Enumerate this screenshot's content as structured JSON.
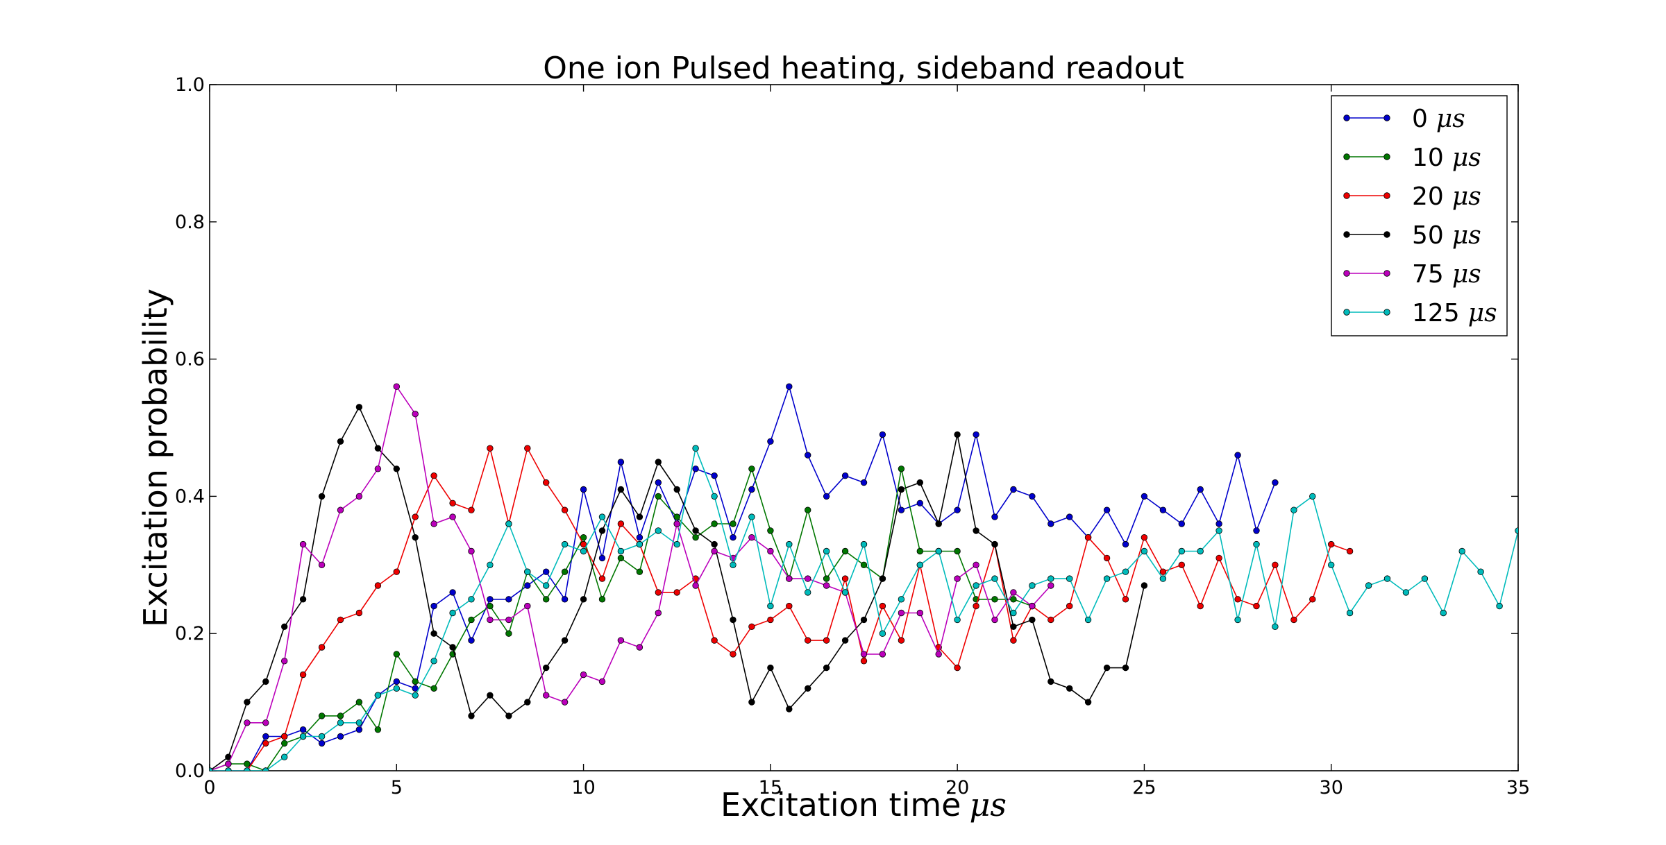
{
  "chart_data": {
    "type": "line",
    "title": "One ion Pulsed heating, sideband readout",
    "xlabel": "Excitation time",
    "xlabel_unit": "μs",
    "ylabel": "Excitation probability",
    "xlim": [
      0,
      35
    ],
    "ylim": [
      0,
      1.0
    ],
    "xticks": [
      0,
      5,
      10,
      15,
      20,
      25,
      30,
      35
    ],
    "yticks": [
      0.0,
      0.2,
      0.4,
      0.6,
      0.8,
      1.0
    ],
    "xtick_labels": [
      "0",
      "5",
      "10",
      "15",
      "20",
      "25",
      "30",
      "35"
    ],
    "ytick_labels": [
      "0.0",
      "0.2",
      "0.4",
      "0.6",
      "0.8",
      "1.0"
    ],
    "grid": false,
    "legend_position": "top-right",
    "series": [
      {
        "name": "0",
        "unit": "μs",
        "color": "#0000cc",
        "x": [
          0,
          0.5,
          1,
          1.5,
          2,
          2.5,
          3,
          3.5,
          4,
          4.5,
          5,
          5.5,
          6,
          6.5,
          7,
          7.5,
          8,
          8.5,
          9,
          9.5,
          10,
          10.5,
          11,
          11.5,
          12,
          12.5,
          13,
          13.5,
          14,
          14.5,
          15,
          15.5,
          16,
          16.5,
          17,
          17.5,
          18,
          18.5,
          19,
          19.5,
          20,
          20.5,
          21,
          21.5,
          22,
          22.5,
          23,
          23.5,
          24,
          24.5,
          25,
          25.5,
          26,
          26.5,
          27,
          27.5,
          28,
          28.5
        ],
        "y": [
          0,
          0,
          0,
          0.05,
          0.05,
          0.06,
          0.04,
          0.05,
          0.06,
          0.11,
          0.13,
          0.12,
          0.24,
          0.26,
          0.19,
          0.25,
          0.25,
          0.27,
          0.29,
          0.25,
          0.41,
          0.31,
          0.45,
          0.34,
          0.42,
          0.36,
          0.44,
          0.43,
          0.34,
          0.41,
          0.48,
          0.56,
          0.46,
          0.4,
          0.43,
          0.42,
          0.49,
          0.38,
          0.39,
          0.36,
          0.38,
          0.49,
          0.37,
          0.41,
          0.4,
          0.36,
          0.37,
          0.34,
          0.38,
          0.33,
          0.4,
          0.38,
          0.36,
          0.41,
          0.36,
          0.46,
          0.35,
          0.42
        ]
      },
      {
        "name": "10",
        "unit": "μs",
        "color": "#007700",
        "x": [
          0,
          0.5,
          1,
          1.5,
          2,
          2.5,
          3,
          3.5,
          4,
          4.5,
          5,
          5.5,
          6,
          6.5,
          7,
          7.5,
          8,
          8.5,
          9,
          9.5,
          10,
          10.5,
          11,
          11.5,
          12,
          12.5,
          13,
          13.5,
          14,
          14.5,
          15,
          15.5,
          16,
          16.5,
          17,
          17.5,
          18,
          18.5,
          19,
          19.5,
          20,
          20.5,
          21,
          21.5,
          22
        ],
        "y": [
          0,
          0.01,
          0.01,
          0,
          0.04,
          0.05,
          0.08,
          0.08,
          0.1,
          0.06,
          0.17,
          0.13,
          0.12,
          0.17,
          0.22,
          0.24,
          0.2,
          0.29,
          0.25,
          0.29,
          0.34,
          0.25,
          0.31,
          0.29,
          0.4,
          0.37,
          0.34,
          0.36,
          0.36,
          0.44,
          0.35,
          0.28,
          0.38,
          0.28,
          0.32,
          0.3,
          0.28,
          0.44,
          0.32,
          0.32,
          0.32,
          0.25,
          0.25,
          0.25,
          0.24
        ]
      },
      {
        "name": "20",
        "unit": "μs",
        "color": "#ee0000",
        "x": [
          0,
          0.5,
          1,
          1.5,
          2,
          2.5,
          3,
          3.5,
          4,
          4.5,
          5,
          5.5,
          6,
          6.5,
          7,
          7.5,
          8,
          8.5,
          9,
          9.5,
          10,
          10.5,
          11,
          11.5,
          12,
          12.5,
          13,
          13.5,
          14,
          14.5,
          15,
          15.5,
          16,
          16.5,
          17,
          17.5,
          18,
          18.5,
          19,
          19.5,
          20,
          20.5,
          21,
          21.5,
          22,
          22.5,
          23,
          23.5,
          24,
          24.5,
          25,
          25.5,
          26,
          26.5,
          27,
          27.5,
          28,
          28.5,
          29,
          29.5,
          30,
          30.5
        ],
        "y": [
          0,
          0,
          0,
          0.04,
          0.05,
          0.14,
          0.18,
          0.22,
          0.23,
          0.27,
          0.29,
          0.37,
          0.43,
          0.39,
          0.38,
          0.47,
          0.36,
          0.47,
          0.42,
          0.38,
          0.33,
          0.28,
          0.36,
          0.33,
          0.26,
          0.26,
          0.28,
          0.19,
          0.17,
          0.21,
          0.22,
          0.24,
          0.19,
          0.19,
          0.28,
          0.16,
          0.24,
          0.19,
          0.3,
          0.18,
          0.15,
          0.24,
          0.33,
          0.19,
          0.24,
          0.22,
          0.24,
          0.34,
          0.31,
          0.25,
          0.34,
          0.29,
          0.3,
          0.24,
          0.31,
          0.25,
          0.24,
          0.3,
          0.22,
          0.25,
          0.33,
          0.32
        ]
      },
      {
        "name": "50",
        "unit": "μs",
        "color": "#000000",
        "x": [
          0,
          0.5,
          1,
          1.5,
          2,
          2.5,
          3,
          3.5,
          4,
          4.5,
          5,
          5.5,
          6,
          6.5,
          7,
          7.5,
          8,
          8.5,
          9,
          9.5,
          10,
          10.5,
          11,
          11.5,
          12,
          12.5,
          13,
          13.5,
          14,
          14.5,
          15,
          15.5,
          16,
          16.5,
          17,
          17.5,
          18,
          18.5,
          19,
          19.5,
          20,
          20.5,
          21,
          21.5,
          22,
          22.5,
          23,
          23.5,
          24,
          24.5,
          25
        ],
        "y": [
          0,
          0.02,
          0.1,
          0.13,
          0.21,
          0.25,
          0.4,
          0.48,
          0.53,
          0.47,
          0.44,
          0.34,
          0.2,
          0.18,
          0.08,
          0.11,
          0.08,
          0.1,
          0.15,
          0.19,
          0.25,
          0.35,
          0.41,
          0.37,
          0.45,
          0.41,
          0.35,
          0.33,
          0.22,
          0.1,
          0.15,
          0.09,
          0.12,
          0.15,
          0.19,
          0.22,
          0.28,
          0.41,
          0.42,
          0.36,
          0.49,
          0.35,
          0.33,
          0.21,
          0.22,
          0.13,
          0.12,
          0.1,
          0.15,
          0.15,
          0.27
        ]
      },
      {
        "name": "75",
        "unit": "μs",
        "color": "#bb00bb",
        "x": [
          0,
          0.5,
          1,
          1.5,
          2,
          2.5,
          3,
          3.5,
          4,
          4.5,
          5,
          5.5,
          6,
          6.5,
          7,
          7.5,
          8,
          8.5,
          9,
          9.5,
          10,
          10.5,
          11,
          11.5,
          12,
          12.5,
          13,
          13.5,
          14,
          14.5,
          15,
          15.5,
          16,
          16.5,
          17,
          17.5,
          18,
          18.5,
          19,
          19.5,
          20,
          20.5,
          21,
          21.5,
          22,
          22.5
        ],
        "y": [
          0,
          0.01,
          0.07,
          0.07,
          0.16,
          0.33,
          0.3,
          0.38,
          0.4,
          0.44,
          0.56,
          0.52,
          0.36,
          0.37,
          0.32,
          0.22,
          0.22,
          0.24,
          0.11,
          0.1,
          0.14,
          0.13,
          0.19,
          0.18,
          0.23,
          0.36,
          0.27,
          0.32,
          0.31,
          0.34,
          0.32,
          0.28,
          0.28,
          0.27,
          0.26,
          0.17,
          0.17,
          0.23,
          0.23,
          0.17,
          0.28,
          0.3,
          0.22,
          0.26,
          0.24,
          0.27
        ]
      },
      {
        "name": "125",
        "unit": "μs",
        "color": "#00bbbb",
        "x": [
          0,
          0.5,
          1,
          1.5,
          2,
          2.5,
          3,
          3.5,
          4,
          4.5,
          5,
          5.5,
          6,
          6.5,
          7,
          7.5,
          8,
          8.5,
          9,
          9.5,
          10,
          10.5,
          11,
          11.5,
          12,
          12.5,
          13,
          13.5,
          14,
          14.5,
          15,
          15.5,
          16,
          16.5,
          17,
          17.5,
          18,
          18.5,
          19,
          19.5,
          20,
          20.5,
          21,
          21.5,
          22,
          22.5,
          23,
          23.5,
          24,
          24.5,
          25,
          25.5,
          26,
          26.5,
          27,
          27.5,
          28,
          28.5,
          29,
          29.5,
          30,
          30.5,
          31,
          31.5,
          32,
          32.5,
          33,
          33.5,
          34,
          34.5,
          35
        ],
        "y": [
          0,
          0,
          0,
          0,
          0.02,
          0.05,
          0.05,
          0.07,
          0.07,
          0.11,
          0.12,
          0.11,
          0.16,
          0.23,
          0.25,
          0.3,
          0.36,
          0.29,
          0.27,
          0.33,
          0.32,
          0.37,
          0.32,
          0.33,
          0.35,
          0.33,
          0.47,
          0.4,
          0.3,
          0.37,
          0.24,
          0.33,
          0.26,
          0.32,
          0.26,
          0.33,
          0.2,
          0.25,
          0.3,
          0.32,
          0.22,
          0.27,
          0.28,
          0.23,
          0.27,
          0.28,
          0.28,
          0.22,
          0.28,
          0.29,
          0.32,
          0.28,
          0.32,
          0.32,
          0.35,
          0.22,
          0.33,
          0.21,
          0.38,
          0.4,
          0.3,
          0.23,
          0.27,
          0.28,
          0.26,
          0.28,
          0.23,
          0.32,
          0.29,
          0.24,
          0.35
        ]
      }
    ]
  }
}
